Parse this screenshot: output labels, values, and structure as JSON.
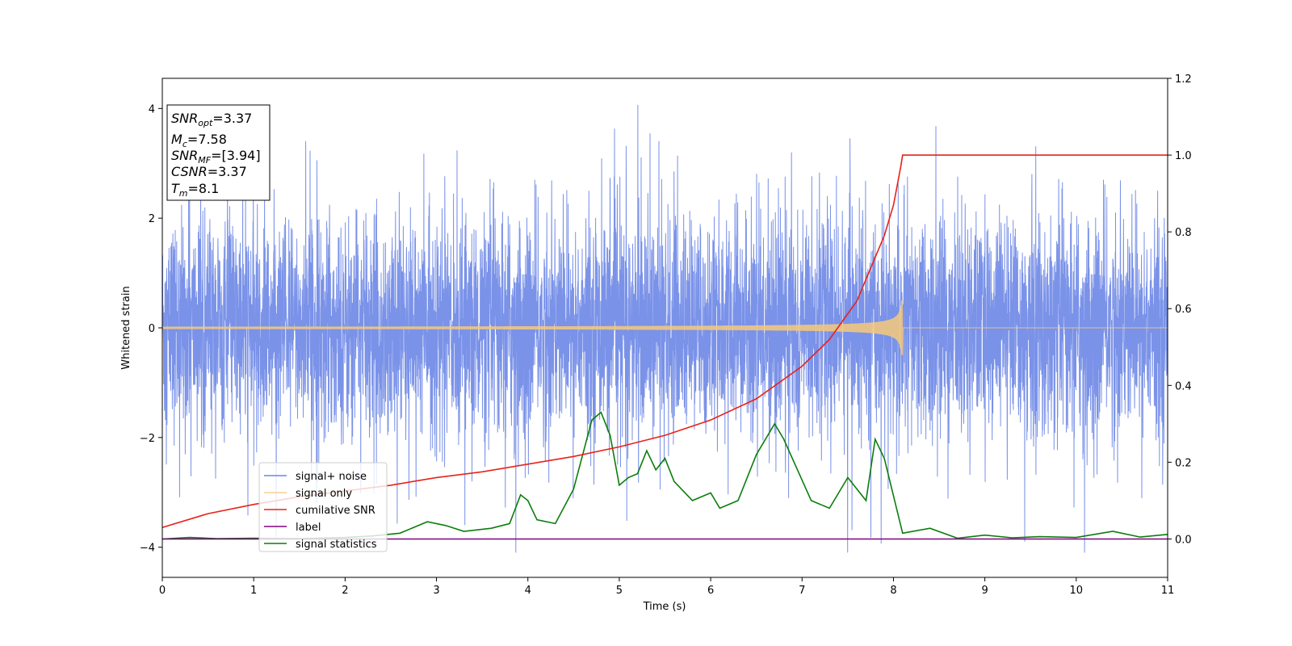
{
  "chart_data": {
    "type": "line",
    "title": "",
    "xlabel": "Time (s)",
    "ylabel": "Whitened strain",
    "y2label": "",
    "xlim": [
      0,
      11
    ],
    "ylim": [
      -4.55,
      4.55
    ],
    "y2lim": [
      -0.1,
      1.2
    ],
    "xticks": [
      "0",
      "1",
      "2",
      "3",
      "4",
      "5",
      "6",
      "7",
      "8",
      "9",
      "10",
      "11"
    ],
    "yticks": [
      "−4",
      "−2",
      "0",
      "2",
      "4"
    ],
    "y2ticks": [
      "0.0",
      "0.2",
      "0.4",
      "0.6",
      "0.8",
      "1.0",
      "1.2"
    ],
    "legend_position": "lower-left",
    "info_box": {
      "snr_opt": {
        "sym": "SNR",
        "sub": "opt",
        "value": "=3.37"
      },
      "mc": {
        "sym": "M",
        "sub": "c",
        "value": "=7.58"
      },
      "snr_mf": {
        "sym": "SNR",
        "sub": "MF",
        "value": "=[3.94]"
      },
      "csnr": {
        "sym": "CSNR",
        "value": "=3.37"
      },
      "tm": {
        "sym": "T",
        "sub": "m",
        "value": "=8.1"
      }
    },
    "series": [
      {
        "name": "signal+ noise",
        "color": "#6b86e6",
        "axis": "left",
        "description": "white noise band roughly between -2.3 and 2.3 with spikes up to about 4.2 and down to about -4.1, sampled 0 to 11 s"
      },
      {
        "name": "signal only",
        "color": "#f7c97a",
        "axis": "left",
        "chirp": {
          "start": 0,
          "end": 8.1,
          "peak_amplitude": 0.5,
          "base_amplitude": 0.02
        }
      },
      {
        "name": "cumilative SNR",
        "color": "#e8221a",
        "axis": "right",
        "x": [
          0,
          0.5,
          1,
          1.5,
          2,
          2.5,
          3,
          3.5,
          4,
          4.5,
          5,
          5.5,
          6,
          6.5,
          7,
          7.3,
          7.6,
          7.9,
          8.0,
          8.08,
          8.1,
          11
        ],
        "y": [
          0.03,
          0.066,
          0.09,
          0.11,
          0.125,
          0.14,
          0.16,
          0.175,
          0.195,
          0.215,
          0.24,
          0.27,
          0.31,
          0.365,
          0.45,
          0.52,
          0.62,
          0.79,
          0.87,
          0.97,
          1.0,
          1.0
        ]
      },
      {
        "name": "label",
        "color": "#800080",
        "axis": "right",
        "x": [
          0,
          11
        ],
        "y": [
          0,
          0
        ]
      },
      {
        "name": "signal statistics",
        "color": "#0c7d0c",
        "axis": "right",
        "x": [
          0,
          0.3,
          0.6,
          1.0,
          1.5,
          2.0,
          2.3,
          2.6,
          2.9,
          3.1,
          3.3,
          3.6,
          3.8,
          3.92,
          4.0,
          4.1,
          4.3,
          4.5,
          4.7,
          4.8,
          4.9,
          5.0,
          5.1,
          5.2,
          5.3,
          5.4,
          5.5,
          5.6,
          5.8,
          6.0,
          6.1,
          6.3,
          6.5,
          6.7,
          6.8,
          6.95,
          7.1,
          7.3,
          7.5,
          7.7,
          7.8,
          7.9,
          8.1,
          8.4,
          8.7,
          9.0,
          9.3,
          9.6,
          10.0,
          10.4,
          10.7,
          11.0
        ],
        "y": [
          0.0,
          0.004,
          0.001,
          0.002,
          0.001,
          0.004,
          0.008,
          0.015,
          0.045,
          0.035,
          0.02,
          0.028,
          0.04,
          0.115,
          0.1,
          0.05,
          0.04,
          0.13,
          0.31,
          0.33,
          0.27,
          0.14,
          0.16,
          0.17,
          0.23,
          0.18,
          0.21,
          0.15,
          0.1,
          0.12,
          0.08,
          0.1,
          0.22,
          0.3,
          0.26,
          0.18,
          0.1,
          0.08,
          0.16,
          0.1,
          0.26,
          0.21,
          0.015,
          0.028,
          0.002,
          0.01,
          0.003,
          0.006,
          0.004,
          0.02,
          0.005,
          0.012
        ]
      }
    ]
  }
}
